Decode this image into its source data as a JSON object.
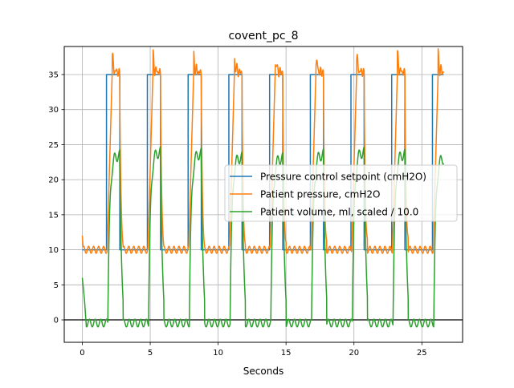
{
  "chart_data": {
    "type": "line",
    "title": "covent_pc_8",
    "xlabel": "Seconds",
    "ylabel": "",
    "xlim": [
      -1.33,
      28.0
    ],
    "ylim": [
      -3.2,
      39.0
    ],
    "x_ticks": [
      0,
      5,
      10,
      15,
      20,
      25
    ],
    "y_ticks": [
      0,
      5,
      10,
      15,
      20,
      25,
      30,
      35
    ],
    "grid": true,
    "zero_line": true,
    "legend_position": "center-right",
    "breath": {
      "period_s": 3.0,
      "count": 9,
      "first_start_s": 0.0,
      "inhale_start_s": 1.78,
      "inhale_end_s": 2.75,
      "last_end_s": 26.6
    },
    "series": [
      {
        "name": "Pressure control setpoint (cmH2O)",
        "color": "#1f77b4",
        "baseline": 10.0,
        "peak": 35.0
      },
      {
        "name": "Patient pressure, cmH2O",
        "color": "#ff7f0e",
        "baseline": 10.0,
        "peak": 35.3,
        "overshoot_peak": 37.5,
        "start_value": 12.0
      },
      {
        "name": "Patient volume, ml, scaled / 10.0",
        "color": "#2ca02c",
        "baseline": 0.0,
        "peak": 23.5,
        "start_value": 6.0
      }
    ]
  }
}
